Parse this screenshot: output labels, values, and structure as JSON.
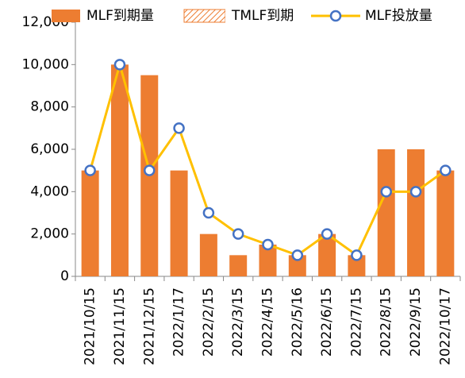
{
  "chart_data": {
    "type": "bar_line",
    "categories": [
      "2021/10/15",
      "2021/11/15",
      "2021/12/15",
      "2022/1/17",
      "2022/2/15",
      "2022/3/15",
      "2022/4/15",
      "2022/5/16",
      "2022/6/15",
      "2022/7/15",
      "2022/8/15",
      "2022/9/15",
      "2022/10/17"
    ],
    "series": [
      {
        "name": "MLF到期量",
        "type": "bar",
        "color": "#ED7D31",
        "values": [
          5000,
          10000,
          9500,
          5000,
          2000,
          1000,
          1500,
          1000,
          2000,
          1000,
          6000,
          6000,
          5000
        ]
      },
      {
        "name": "TMLF到期",
        "type": "bar",
        "color": "#ED7D31",
        "hatch": true,
        "values": [
          null,
          null,
          null,
          null,
          null,
          null,
          null,
          null,
          null,
          null,
          null,
          null,
          null
        ]
      },
      {
        "name": "MLF投放量",
        "type": "line",
        "color": "#FFC000",
        "marker_color": "#4472C4",
        "values": [
          5000,
          10000,
          5000,
          7000,
          3000,
          2000,
          1500,
          1000,
          2000,
          1000,
          4000,
          4000,
          5000
        ]
      }
    ],
    "ylim": [
      0,
      12000
    ],
    "yticks": [
      0,
      {
        "value": 2000,
        "label": "2,000"
      },
      {
        "value": 4000,
        "label": "4,000"
      },
      {
        "value": 6000,
        "label": "6,000"
      },
      {
        "value": 8000,
        "label": "8,000"
      },
      {
        "value": 10000,
        "label": "10,000"
      },
      {
        "value": 12000,
        "label": "12,000"
      }
    ],
    "legend": "top"
  }
}
